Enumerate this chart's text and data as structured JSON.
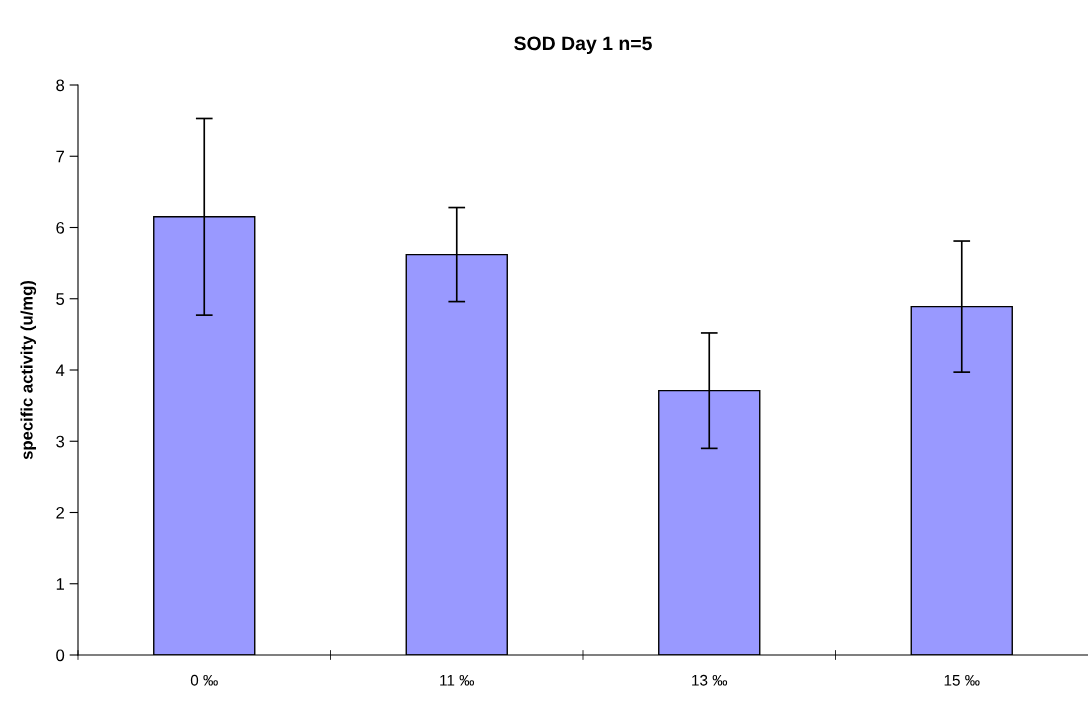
{
  "chart_data": {
    "type": "bar",
    "title": "SOD Day 1 n=5",
    "ylabel": "specific activity (u/mg)",
    "categories": [
      "0 ‰",
      "11 ‰",
      "13 ‰",
      "15 ‰"
    ],
    "values": [
      6.15,
      5.62,
      3.71,
      4.89
    ],
    "errors": [
      1.38,
      0.66,
      0.81,
      0.92
    ],
    "color": "#9999ff",
    "ylim": [
      0,
      8
    ],
    "yticks": [
      0,
      1,
      2,
      3,
      4,
      5,
      6,
      7,
      8
    ],
    "grid": false
  }
}
